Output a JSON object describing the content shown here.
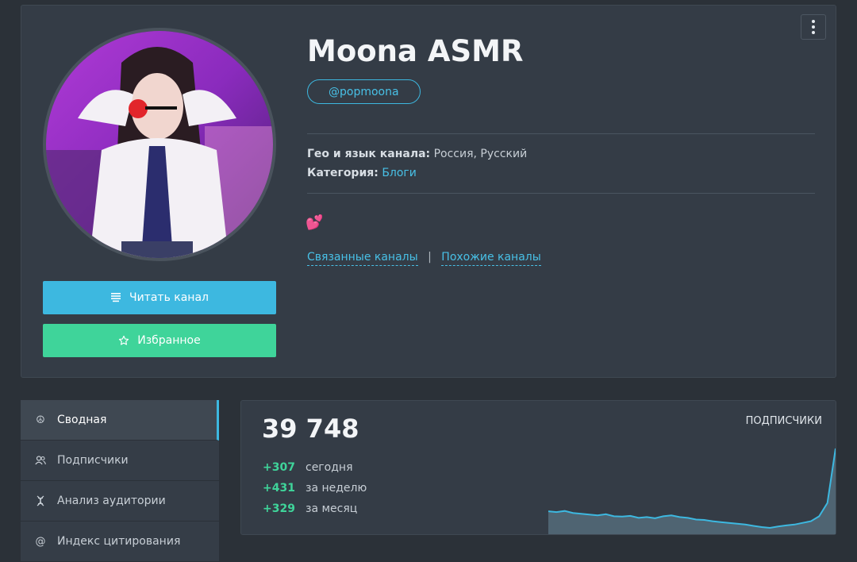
{
  "channel": {
    "name": "Moona ASMR",
    "handle": "@popmoona",
    "geo_label": "Гео и язык канала:",
    "geo_value": "Россия, Русский",
    "category_label": "Категория:",
    "category_value": "Блоги",
    "emoji": "💕",
    "linked_channels": "Связанные каналы",
    "separator": "|",
    "similar_channels": "Похожие каналы"
  },
  "buttons": {
    "read_label": "Читать канал",
    "read_icon": "list-lines-icon",
    "fav_label": "Избранное",
    "fav_icon": "star-outline-icon",
    "read_color": "#3db8e0",
    "fav_color": "#3fd49a"
  },
  "sidebar": {
    "items": [
      {
        "label": "Сводная",
        "icon": "peace-icon",
        "active": true
      },
      {
        "label": "Подписчики",
        "icon": "users-icon",
        "active": false
      },
      {
        "label": "Анализ аудитории",
        "icon": "dna-icon",
        "active": false
      },
      {
        "label": "Индекс цитирования",
        "icon": "at-icon",
        "active": false
      }
    ]
  },
  "stats": {
    "subscribers": "39 748",
    "label": "ПОДПИСЧИКИ",
    "deltas": [
      {
        "value": "+307",
        "label": "сегодня"
      },
      {
        "value": "+431",
        "label": "за неделю"
      },
      {
        "value": "+329",
        "label": "за месяц"
      }
    ],
    "accent": "#3db8e0",
    "positive": "#3fd49a"
  },
  "chart_data": {
    "type": "area",
    "title": "",
    "series": [
      {
        "values": [
          39370,
          39365,
          39372,
          39360,
          39355,
          39350,
          39345,
          39352,
          39340,
          39338,
          39342,
          39330,
          39335,
          39328,
          39340,
          39345,
          39335,
          39330,
          39320,
          39318,
          39310,
          39305,
          39300,
          39295,
          39290,
          39282,
          39275,
          39270,
          39278,
          39285,
          39290,
          39300,
          39310,
          39340,
          39420,
          39748
        ]
      }
    ]
  }
}
